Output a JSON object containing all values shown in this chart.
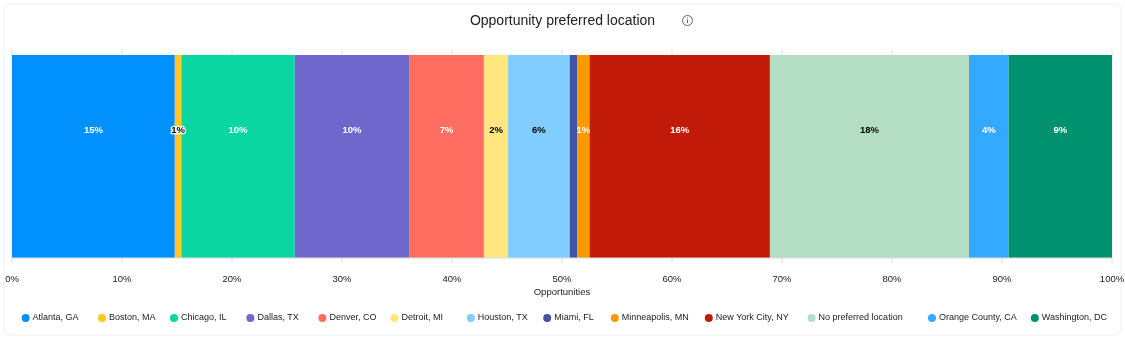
{
  "chart_data": {
    "type": "bar",
    "title": "Opportunity preferred location",
    "xlabel": "Opportunities",
    "orientation": "horizontal",
    "stacked": true,
    "categories": [
      null
    ],
    "xlim": [
      0,
      100
    ],
    "xticks": [
      {
        "value": 0,
        "label": "0%"
      },
      {
        "value": 10,
        "label": "10%"
      },
      {
        "value": 20,
        "label": "20%"
      },
      {
        "value": 30,
        "label": "30%"
      },
      {
        "value": 40,
        "label": "40%"
      },
      {
        "value": 50,
        "label": "50%"
      },
      {
        "value": 60,
        "label": "60%"
      },
      {
        "value": 70,
        "label": "70%"
      },
      {
        "value": 80,
        "label": "80%"
      },
      {
        "value": 90,
        "label": "90%"
      },
      {
        "value": 100,
        "label": "100%"
      }
    ],
    "grid": "x",
    "legend": "bottom",
    "tick_labels": "x",
    "series": [
      {
        "name": "Atlanta, GA",
        "color": "#0091ff",
        "values": [
          14.8
        ],
        "value_labels": [
          "15%"
        ]
      },
      {
        "name": "Boston, MA",
        "color": "#ffc726",
        "values": [
          0.6
        ],
        "value_labels": [
          "1%"
        ]
      },
      {
        "name": "Chicago, IL",
        "color": "#0ad6a1",
        "values": [
          10.3
        ],
        "value_labels": [
          "10%"
        ]
      },
      {
        "name": "Dallas, TX",
        "color": "#6f67cb",
        "values": [
          10.4
        ],
        "value_labels": [
          "10%"
        ]
      },
      {
        "name": "Denver, CO",
        "color": "#ff6e61",
        "values": [
          6.8
        ],
        "value_labels": [
          "7%"
        ]
      },
      {
        "name": "Detroit, MI",
        "color": "#ffe680",
        "values": [
          2.2
        ],
        "value_labels": [
          "2%"
        ]
      },
      {
        "name": "Houston, TX",
        "color": "#82cdff",
        "values": [
          5.6
        ],
        "value_labels": [
          "6%"
        ]
      },
      {
        "name": "Miami, FL",
        "color": "#4053a6",
        "values": [
          0.7
        ],
        "value_labels": [
          null
        ]
      },
      {
        "name": "Minneapolis, MN",
        "color": "#ff9900",
        "values": [
          1.1
        ],
        "value_labels": [
          "1%"
        ]
      },
      {
        "name": "New York City, NY",
        "color": "#c21a09",
        "values": [
          16.4
        ],
        "value_labels": [
          "16%"
        ]
      },
      {
        "name": "No preferred location",
        "color": "#b3dec4",
        "values": [
          18.1
        ],
        "value_labels": [
          "18%"
        ]
      },
      {
        "name": "Orange County, CA",
        "color": "#33aaff",
        "values": [
          3.6
        ],
        "value_labels": [
          "4%"
        ]
      },
      {
        "name": "Washington, DC",
        "color": "#00916e",
        "values": [
          9.4
        ],
        "value_labels": [
          "9%"
        ]
      }
    ]
  }
}
